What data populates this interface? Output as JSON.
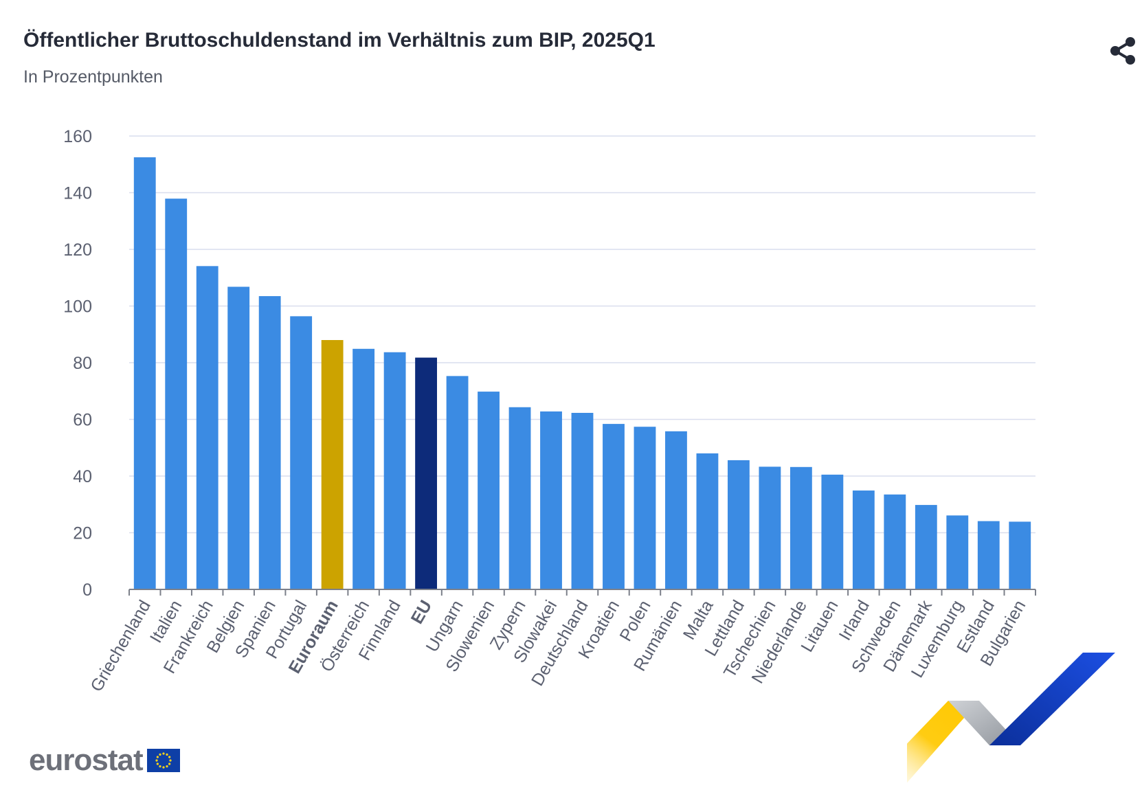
{
  "header": {
    "title": "Öffentlicher Bruttoschuldenstand im Verhältnis zum BIP, 2025Q1",
    "subtitle": "In Prozentpunkten",
    "share_icon": "share-icon"
  },
  "footer": {
    "logo_text": "eurostat",
    "flag_icon": "eu-flag-icon"
  },
  "colors": {
    "default": "#3b8be3",
    "euroraum": "#cca300",
    "eu": "#0d2b7a",
    "grid": "#d9deee",
    "axis": "#7c808a",
    "label": "#5b6070"
  },
  "chart_data": {
    "type": "bar",
    "title": "Öffentlicher Bruttoschuldenstand im Verhältnis zum BIP, 2025Q1",
    "subtitle": "In Prozentpunkten",
    "xlabel": "",
    "ylabel": "",
    "ylim": [
      0,
      160
    ],
    "yticks": [
      0,
      20,
      40,
      60,
      80,
      100,
      120,
      140,
      160
    ],
    "grid": true,
    "categories": [
      "Griechenland",
      "Italien",
      "Frankreich",
      "Belgien",
      "Spanien",
      "Portugal",
      "Euroraum",
      "Österreich",
      "Finnland",
      "EU",
      "Ungarn",
      "Slowenien",
      "Zypern",
      "Slowakei",
      "Deutschland",
      "Kroatien",
      "Polen",
      "Rumänien",
      "Malta",
      "Lettland",
      "Tschechien",
      "Niederlande",
      "Litauen",
      "Irland",
      "Schweden",
      "Dänemark",
      "Luxemburg",
      "Estland",
      "Bulgarien"
    ],
    "values": [
      152.5,
      137.9,
      114.1,
      106.8,
      103.5,
      96.4,
      88.0,
      84.9,
      83.7,
      81.8,
      75.3,
      69.8,
      64.3,
      62.8,
      62.3,
      58.4,
      57.4,
      55.8,
      48.0,
      45.6,
      43.3,
      43.2,
      40.5,
      34.9,
      33.5,
      29.8,
      26.1,
      24.1,
      23.9
    ],
    "highlight": {
      "Euroraum": "euroraum",
      "EU": "eu"
    },
    "bold_labels": [
      "Euroraum",
      "EU"
    ]
  }
}
